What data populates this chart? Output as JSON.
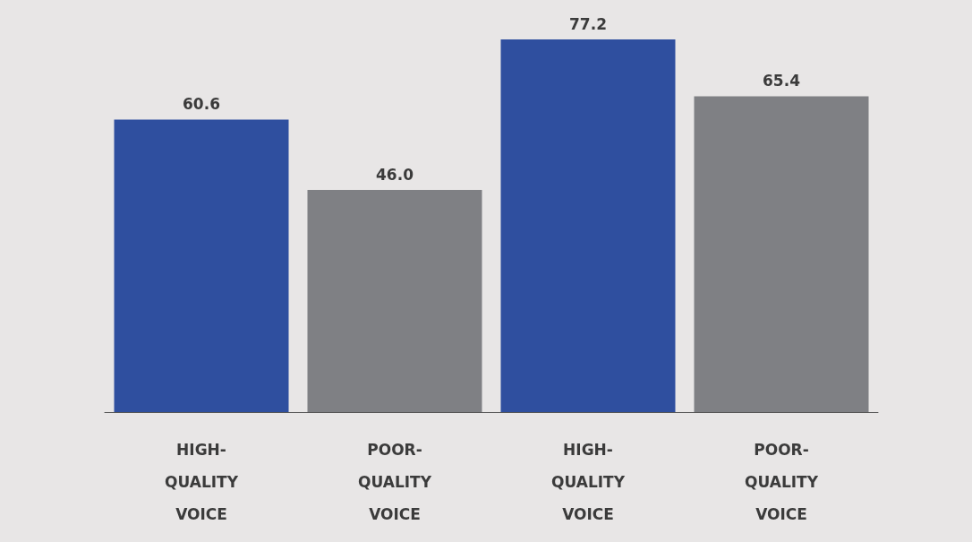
{
  "chart_data": {
    "type": "bar",
    "categories": [
      "HIGH-QUALITY VOICE",
      "POOR-QUALITY VOICE",
      "HIGH-QUALITY VOICE",
      "POOR-QUALITY VOICE"
    ],
    "values": [
      60.6,
      46.0,
      77.2,
      65.4
    ],
    "value_labels": [
      "60.6",
      "46.0",
      "77.2",
      "65.4"
    ],
    "colors": [
      "#2f4f9f",
      "#7f8084",
      "#2f4f9f",
      "#7f8084"
    ],
    "tick_labels": "x"
  }
}
